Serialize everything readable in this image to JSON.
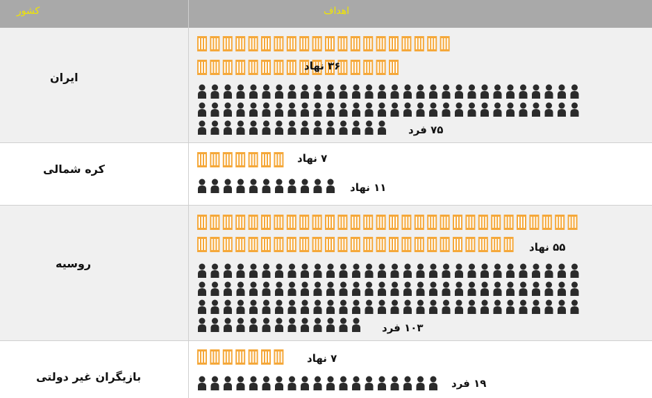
{
  "header": {
    "country_label": "کشور",
    "targets_label": "اهداف"
  },
  "colors": {
    "header_bg": "#a9a9a9",
    "header_text": "#f2e600",
    "building": "#f5a83a",
    "person": "#2b2b2b",
    "alt_row_bg": "#f0f0f0"
  },
  "icons": {
    "building": "building-icon",
    "person": "person-icon"
  },
  "rows": [
    {
      "country": "ایران",
      "institutions": 36,
      "institutions_label": "۳۶ نهاد",
      "people": 75,
      "people_label": "۷۵ فرد"
    },
    {
      "country": "کره شمالی",
      "institutions": 7,
      "institutions_label": "۷ نهاد",
      "people": 11,
      "people_label": "۱۱ نهاد"
    },
    {
      "country": "روسیه",
      "institutions": 55,
      "institutions_label": "۵۵ نهاد",
      "people": 103,
      "people_label": "۱۰۳ فرد"
    },
    {
      "country": "بازیگران غیر دولتی",
      "institutions": 7,
      "institutions_label": "۷ نهاد",
      "people": 19,
      "people_label": "۱۹ فرد"
    }
  ]
}
